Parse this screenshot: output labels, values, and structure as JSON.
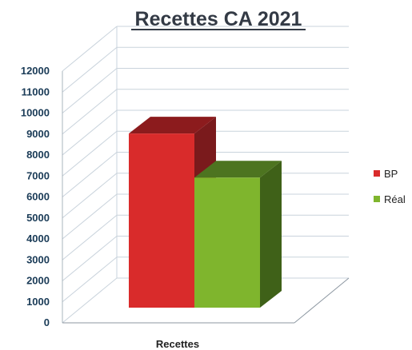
{
  "chart_data": {
    "type": "bar",
    "style": "3d-clustered-column",
    "title": "Recettes CA 2021",
    "xlabel": "",
    "ylabel": "",
    "categories": [
      "Recettes"
    ],
    "series": [
      {
        "name": "BP",
        "values": [
          8300
        ],
        "color": "#d92b2b",
        "top_color": "#8c1b1d",
        "side_color": "#7a1a1c"
      },
      {
        "name": "Réal",
        "values": [
          6200
        ],
        "color": "#7fb52d",
        "top_color": "#4d7420",
        "side_color": "#3f6118"
      }
    ],
    "ylim": [
      0,
      12000
    ],
    "yticks": [
      0,
      1000,
      2000,
      3000,
      4000,
      5000,
      6000,
      7000,
      8000,
      9000,
      10000,
      11000,
      12000
    ],
    "grid": true,
    "legend_position": "right",
    "colors": {
      "title": "#333a45",
      "tick": "#1a3b57",
      "grid": "#c9d3dc"
    }
  }
}
